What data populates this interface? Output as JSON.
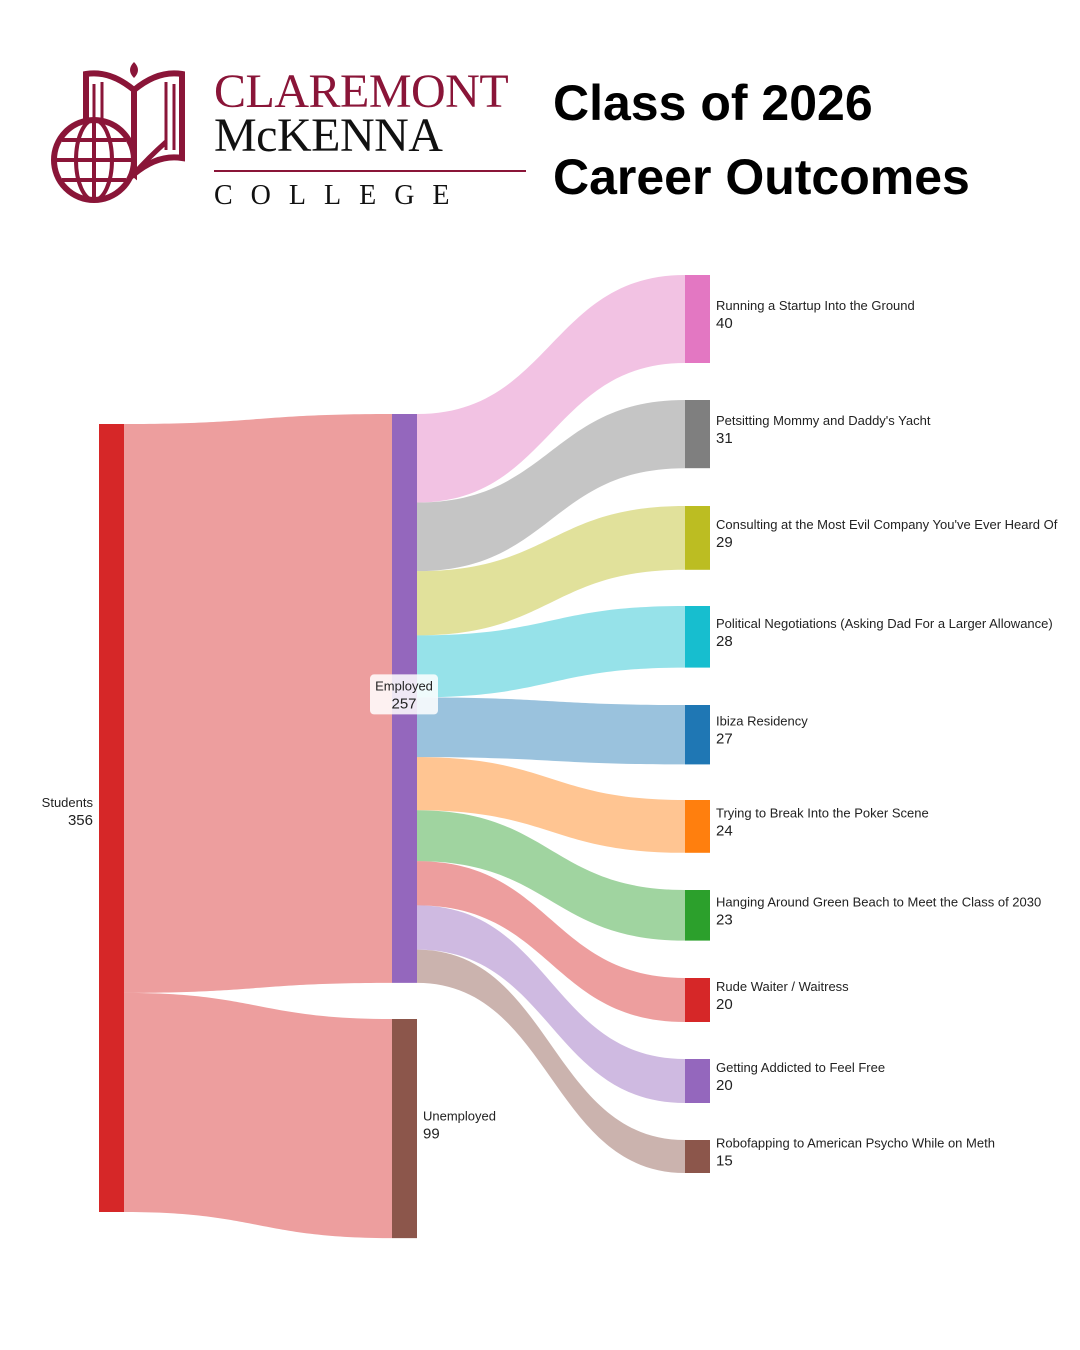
{
  "header": {
    "logo": {
      "line1": "CLAREMONT",
      "line2": "McKENNA",
      "line3": "COLLEGE",
      "color": "#8a1538"
    },
    "title_line1": "Class of 2026",
    "title_line2": "Career Outcomes"
  },
  "chart_data": {
    "type": "sankey",
    "nodes": [
      {
        "id": "students",
        "label": "Students",
        "value": 356,
        "color": "#d62728"
      },
      {
        "id": "employed",
        "label": "Employed",
        "value": 257,
        "color": "#9467bd"
      },
      {
        "id": "unemployed",
        "label": "Unemployed",
        "value": 99,
        "color": "#8c564b"
      },
      {
        "id": "startup",
        "label": "Running a Startup Into the Ground",
        "value": 40,
        "color": "#e377c2"
      },
      {
        "id": "yacht",
        "label": "Petsitting Mommy and Daddy's Yacht",
        "value": 31,
        "color": "#7f7f7f"
      },
      {
        "id": "consulting",
        "label": "Consulting at the Most Evil Company You've Ever Heard Of",
        "value": 29,
        "color": "#bcbd22"
      },
      {
        "id": "political",
        "label": "Political Negotiations (Asking Dad For a Larger Allowance)",
        "value": 28,
        "color": "#17becf"
      },
      {
        "id": "ibiza",
        "label": "Ibiza Residency",
        "value": 27,
        "color": "#1f77b4"
      },
      {
        "id": "poker",
        "label": "Trying to Break Into the Poker Scene",
        "value": 24,
        "color": "#ff7f0e"
      },
      {
        "id": "greenbeach",
        "label": "Hanging Around Green Beach to Meet the Class of 2030",
        "value": 23,
        "color": "#2ca02c"
      },
      {
        "id": "waiter",
        "label": "Rude Waiter / Waitress",
        "value": 20,
        "color": "#d62728"
      },
      {
        "id": "feelfree",
        "label": "Getting Addicted to Feel Free",
        "value": 20,
        "color": "#9467bd"
      },
      {
        "id": "robo",
        "label": "Robofapping to American Psycho While on Meth",
        "value": 15,
        "color": "#8c564b"
      }
    ],
    "links": [
      {
        "source": "students",
        "target": "employed",
        "value": 257
      },
      {
        "source": "students",
        "target": "unemployed",
        "value": 99
      },
      {
        "source": "employed",
        "target": "startup",
        "value": 40
      },
      {
        "source": "employed",
        "target": "yacht",
        "value": 31
      },
      {
        "source": "employed",
        "target": "consulting",
        "value": 29
      },
      {
        "source": "employed",
        "target": "political",
        "value": 28
      },
      {
        "source": "employed",
        "target": "ibiza",
        "value": 27
      },
      {
        "source": "employed",
        "target": "poker",
        "value": 24
      },
      {
        "source": "employed",
        "target": "greenbeach",
        "value": 23
      },
      {
        "source": "employed",
        "target": "waiter",
        "value": 20
      },
      {
        "source": "employed",
        "target": "feelfree",
        "value": 20
      },
      {
        "source": "employed",
        "target": "robo",
        "value": 15
      }
    ]
  }
}
